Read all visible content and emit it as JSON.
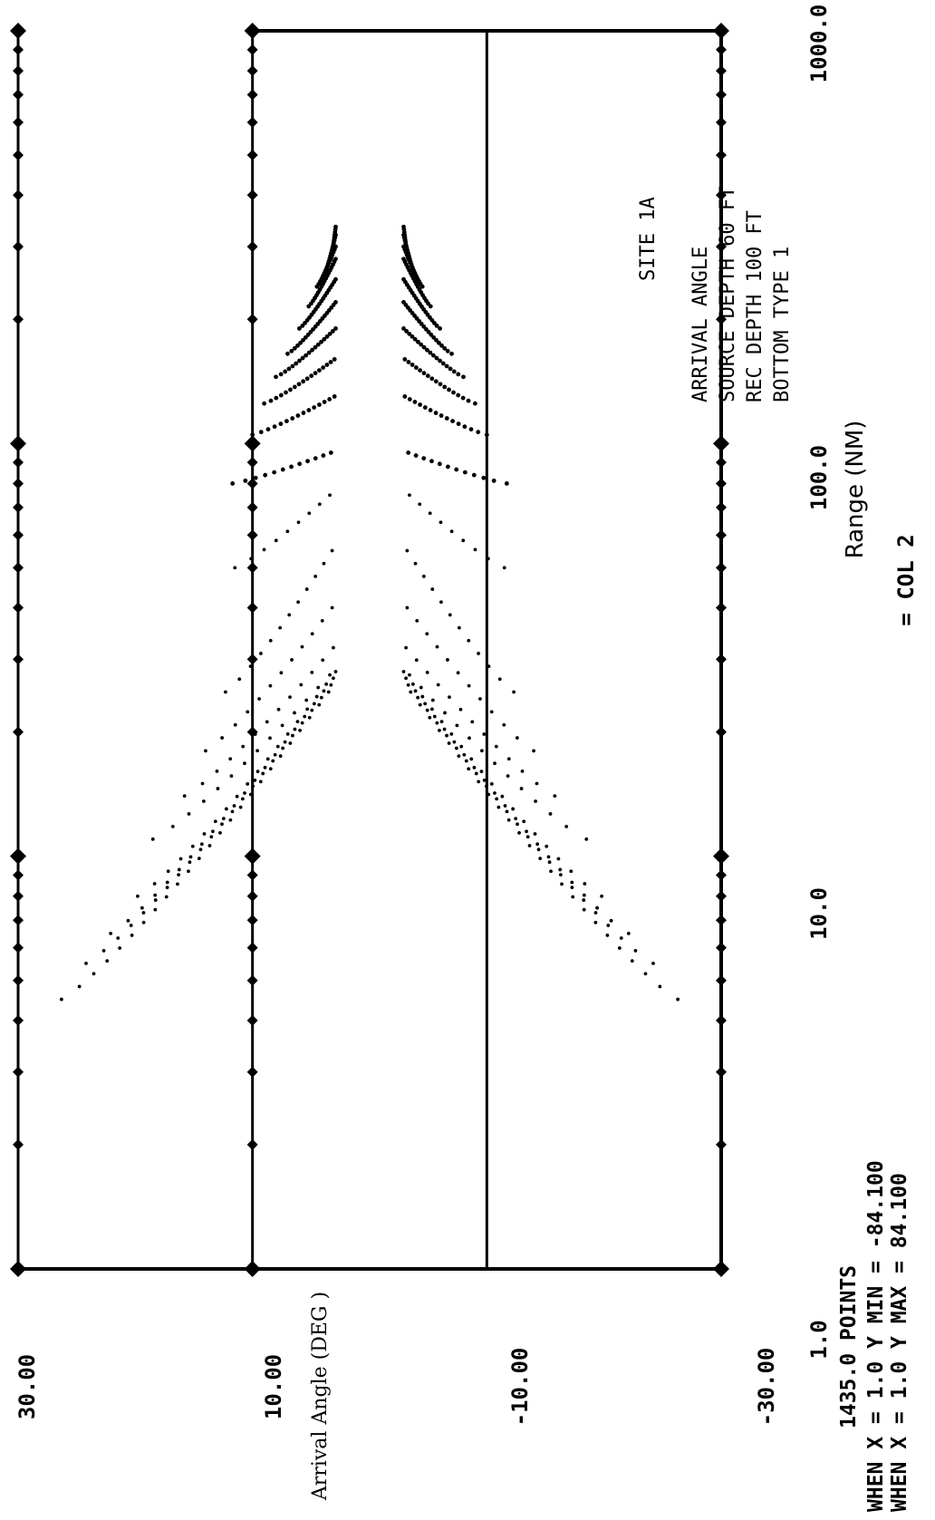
{
  "chart_data": {
    "type": "scatter",
    "x_scale": "log",
    "xlim": [
      1.0,
      1000.0
    ],
    "ylim": [
      -30.0,
      30.0
    ],
    "x_ticks": [
      "1.0",
      "10.0",
      "100.0",
      "1000.0"
    ],
    "y_ticks": [
      "30.00",
      "10.00",
      "-10.00",
      "-30.00"
    ],
    "xlabel": "Range (NM)",
    "ylabel": "Arrival Angle (DEG )",
    "annotation": [
      "SITE 1A",
      "ARRIVAL ANGLE",
      "SOURCE DEPTH 60 FT",
      "REC DEPTH 100 FT",
      "BOTTOM TYPE 1"
    ],
    "col_label": "= COL  2",
    "stats": {
      "points_line": "1435.0 POINTS",
      "row1": "WHEN X =    1.0 Y MIN =   -84.100",
      "row2": "WHEN X =    1.0 Y MAX =    84.100"
    },
    "branches": [
      {
        "start_range": 4.5,
        "end_range": 25,
        "start_angle": 26.3,
        "end_angle": 3.5
      },
      {
        "start_range": 5.5,
        "end_range": 26,
        "start_angle": 24.2,
        "end_angle": 3.3
      },
      {
        "start_range": 6.5,
        "end_range": 27,
        "start_angle": 22.1,
        "end_angle": 3.1
      },
      {
        "start_range": 8,
        "end_range": 28,
        "start_angle": 19.8,
        "end_angle": 2.9
      },
      {
        "start_range": 11,
        "end_range": 27.5,
        "start_angle": 18.5,
        "end_angle": 3.4
      },
      {
        "start_range": 14,
        "end_range": 32,
        "start_angle": 15.8,
        "end_angle": 3.1
      },
      {
        "start_range": 18,
        "end_range": 40,
        "start_angle": 14.0,
        "end_angle": 3.2
      },
      {
        "start_range": 25,
        "end_range": 55,
        "start_angle": 12.3,
        "end_angle": 3.2
      },
      {
        "start_range": 50,
        "end_range": 75,
        "start_angle": 11.5,
        "end_angle": 3.4
      },
      {
        "start_range": 80,
        "end_range": 95,
        "start_angle": 11.7,
        "end_angle": 3.3
      },
      {
        "start_range": 105,
        "end_range": 130,
        "start_angle": 10.0,
        "end_angle": 3.0
      },
      {
        "start_range": 125,
        "end_range": 160,
        "start_angle": 9.0,
        "end_angle": 3.0
      },
      {
        "start_range": 145,
        "end_range": 190,
        "start_angle": 8.0,
        "end_angle": 2.9
      },
      {
        "start_range": 165,
        "end_range": 220,
        "start_angle": 7.0,
        "end_angle": 2.9
      },
      {
        "start_range": 190,
        "end_range": 250,
        "start_angle": 6.0,
        "end_angle": 2.9
      },
      {
        "start_range": 215,
        "end_range": 280,
        "start_angle": 5.2,
        "end_angle": 2.9
      },
      {
        "start_range": 240,
        "end_range": 300,
        "start_angle": 4.5,
        "end_angle": 2.9
      },
      {
        "start_range": 260,
        "end_range": 320,
        "start_angle": 3.8,
        "end_angle": 2.9
      },
      {
        "start_range": 280,
        "end_range": 335,
        "start_angle": 3.3,
        "end_angle": 2.9
      }
    ]
  }
}
